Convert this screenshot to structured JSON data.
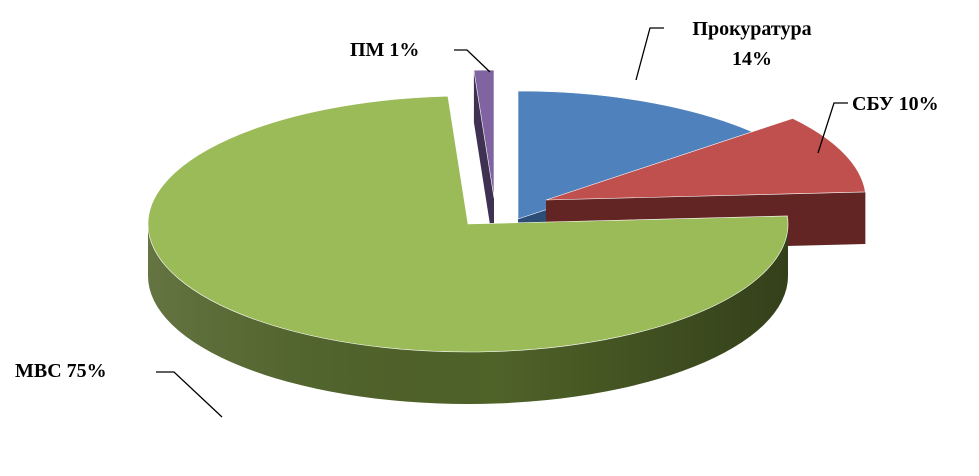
{
  "chart_data": {
    "type": "pie",
    "title": "",
    "style": "3d-exploded",
    "legend": "none",
    "slices": [
      {
        "name": "Прокуратура",
        "value": 14,
        "label_lines": [
          "Прокуратура",
          "14%"
        ],
        "color": "#4f81bd",
        "side_color": "#2c4d75"
      },
      {
        "name": "СБУ",
        "value": 10,
        "label_lines": [
          "СБУ 10%"
        ],
        "color": "#c0504d",
        "side_color": "#632523"
      },
      {
        "name": "МВС",
        "value": 75,
        "label_lines": [
          "МВС 75%"
        ],
        "color": "#9bbb59",
        "side_color": "#4f6228"
      },
      {
        "name": "ПМ",
        "value": 1,
        "label_lines": [
          "ПМ 1%"
        ],
        "color": "#8064a2",
        "side_color": "#3f3151"
      }
    ]
  }
}
